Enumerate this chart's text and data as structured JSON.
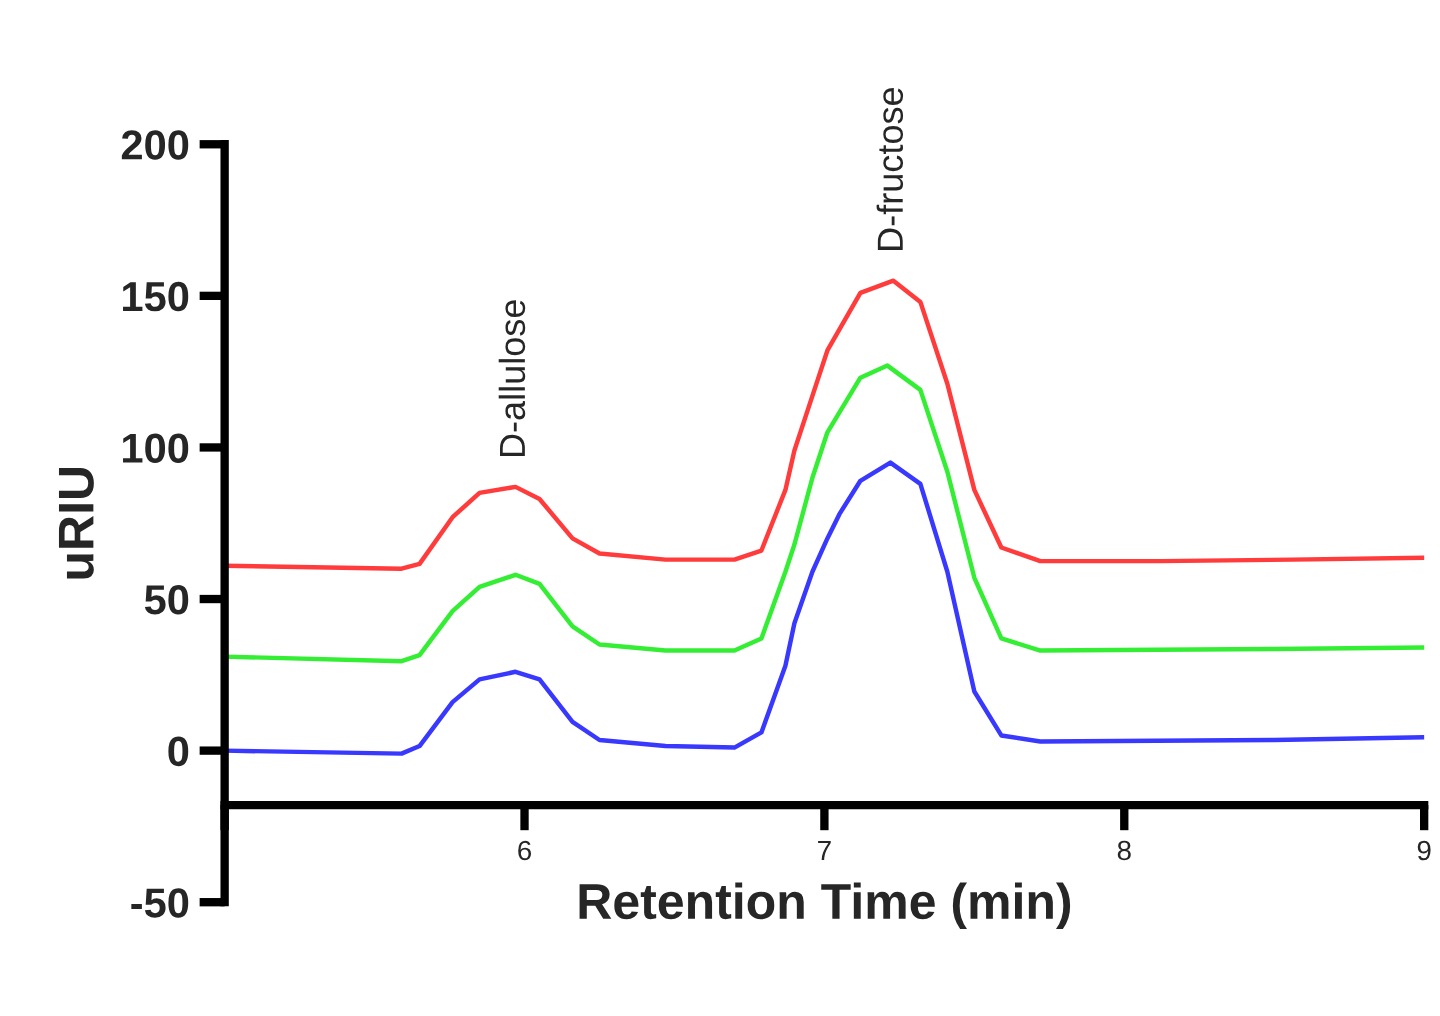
{
  "chart_data": {
    "type": "line",
    "xlabel": "Retention Time (min)",
    "ylabel": "uRIU",
    "xlim": [
      5,
      9
    ],
    "xticks": [
      {
        "value": 5,
        "label": null
      },
      6,
      7,
      8,
      9
    ],
    "ylim": [
      -50,
      200
    ],
    "yticks": [
      -50,
      0,
      50,
      100,
      150,
      200
    ],
    "grid": false,
    "marker": "none",
    "line_style": "solid",
    "series": [
      {
        "color": "#ff3b3b",
        "x": [
          5.0,
          5.59,
          5.65,
          5.76,
          5.85,
          5.97,
          6.05,
          6.16,
          6.25,
          6.47,
          6.7,
          6.79,
          6.87,
          6.9,
          6.96,
          7.01,
          7.12,
          7.23,
          7.32,
          7.41,
          7.5,
          7.59,
          7.72,
          8.12,
          8.56,
          9.0
        ],
        "values": [
          61,
          60,
          61.6,
          77,
          85,
          87,
          83,
          70,
          65,
          63,
          63,
          66,
          86,
          99,
          117,
          132,
          151,
          155,
          148,
          121,
          86,
          67,
          62.5,
          62.5,
          63,
          63.6
        ]
      },
      {
        "color": "#33ee33",
        "x": [
          5.0,
          5.59,
          5.65,
          5.76,
          5.85,
          5.97,
          6.05,
          6.16,
          6.25,
          6.47,
          6.7,
          6.79,
          6.87,
          6.9,
          6.96,
          7.01,
          7.12,
          7.21,
          7.32,
          7.41,
          7.5,
          7.59,
          7.72,
          8.5,
          9.0
        ],
        "values": [
          31,
          29.5,
          31.5,
          46,
          54,
          58,
          55,
          41,
          35,
          33,
          33,
          37,
          59,
          68,
          90,
          105,
          123,
          127,
          119,
          92,
          57,
          37,
          33,
          33.5,
          34
        ]
      },
      {
        "color": "#3838ff",
        "x": [
          5.0,
          5.59,
          5.65,
          5.76,
          5.85,
          5.97,
          6.05,
          6.16,
          6.25,
          6.47,
          6.7,
          6.79,
          6.87,
          6.9,
          6.96,
          7.01,
          7.05,
          7.12,
          7.22,
          7.32,
          7.41,
          7.5,
          7.59,
          7.72,
          8.5,
          9.0
        ],
        "values": [
          0,
          -1,
          1.5,
          16,
          23.5,
          26,
          23.5,
          9.5,
          3.5,
          1.5,
          1,
          6,
          28,
          42,
          59,
          70,
          78,
          89,
          95,
          88,
          59,
          19.5,
          5,
          3,
          3.5,
          4.4
        ]
      }
    ],
    "annotations": [
      {
        "text": "D-allulose",
        "x": 5.97,
        "y": 87
      },
      {
        "text": "D-fructose",
        "x": 7.23,
        "y": 155
      }
    ]
  }
}
